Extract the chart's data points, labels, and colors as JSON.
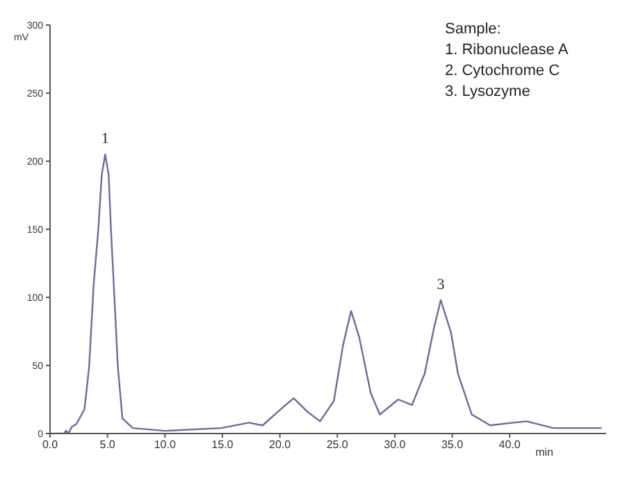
{
  "chart_data": {
    "type": "line",
    "xlabel": "min",
    "ylabel": "mV",
    "x": [
      0,
      1.2,
      1.4,
      1.6,
      1.9,
      2.3,
      3.0,
      3.4,
      3.8,
      4.2,
      4.5,
      4.8,
      5.1,
      5.3,
      5.6,
      5.9,
      6.3,
      7.2,
      10,
      14.9,
      17.3,
      18.5,
      20.1,
      21.2,
      22.4,
      23.5,
      24.7,
      25.5,
      26.2,
      26.9,
      27.9,
      28.7,
      30.3,
      31.5,
      32.6,
      33.4,
      34.0,
      34.9,
      35.5,
      36.7,
      38.3,
      40.3,
      41.5,
      43.8,
      48
    ],
    "series": [
      {
        "color": "#6b6b9c",
        "values": [
          0,
          0,
          2,
          0,
          5,
          7,
          18,
          49,
          110,
          150,
          190,
          205,
          190,
          150,
          100,
          49,
          11,
          4,
          2,
          4,
          8,
          6,
          18,
          26,
          16,
          9,
          24,
          65,
          90,
          71,
          30,
          14,
          25,
          21,
          44,
          77,
          98,
          74,
          44,
          14,
          6,
          8,
          9,
          4,
          4
        ]
      }
    ],
    "xlim": [
      0,
      48.4
    ],
    "ylim": [
      0,
      300
    ],
    "xticks": [
      {
        "value": 0,
        "label": "0.0"
      },
      {
        "value": 5,
        "label": "5.0"
      },
      {
        "value": 10,
        "label": "10.0"
      },
      {
        "value": 15,
        "label": "15.0"
      },
      {
        "value": 20,
        "label": "20.0"
      },
      {
        "value": 25,
        "label": "25.0"
      },
      {
        "value": 30,
        "label": "30.0"
      },
      {
        "value": 35,
        "label": "35.0"
      },
      {
        "value": 40,
        "label": "40.0"
      }
    ],
    "yticks": [
      0,
      50,
      100,
      150,
      200,
      250,
      300
    ],
    "grid": false,
    "legend": false,
    "marker": "none",
    "line_style": "solid",
    "annotations": [
      {
        "text": "1",
        "x": 4.8,
        "y": 205
      },
      {
        "text": "3",
        "x": 34,
        "y": 98
      },
      "Sample:\n1. Ribonuclease A\n2. Cytochrome C\n3. Lysozyme"
    ]
  }
}
